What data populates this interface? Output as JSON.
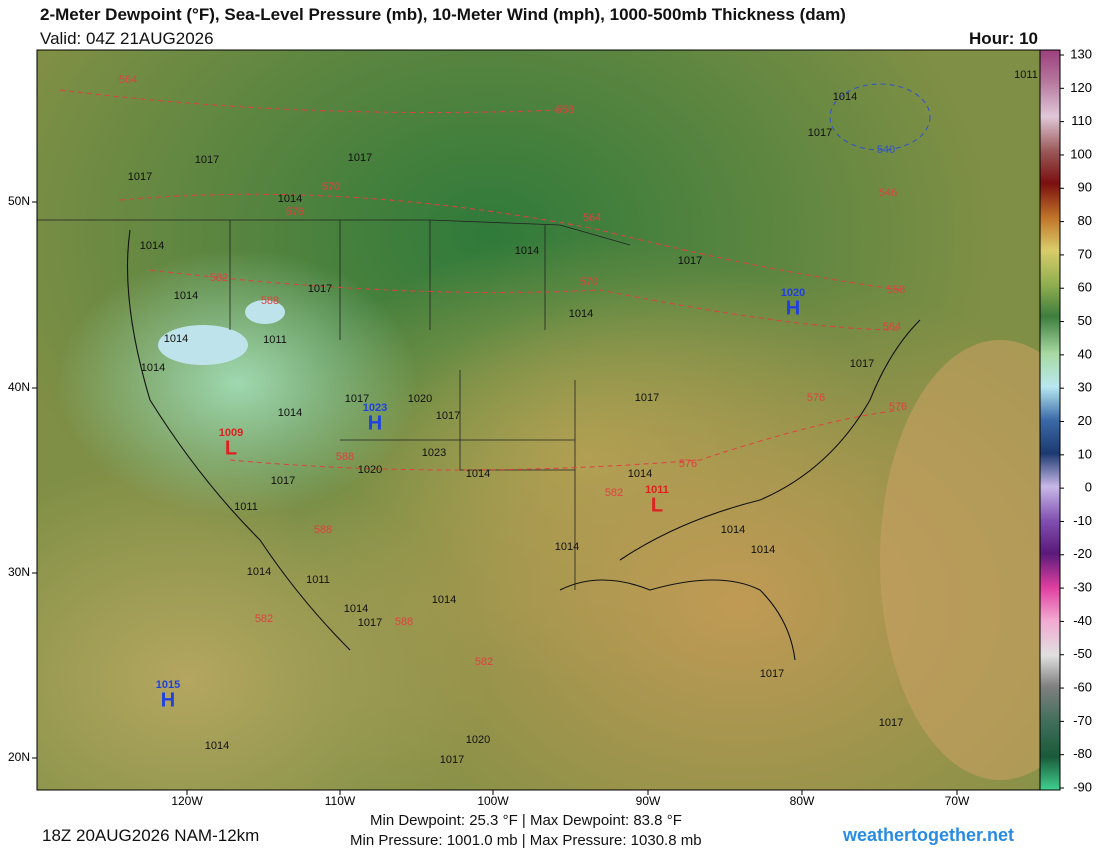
{
  "header": {
    "title": "2-Meter Dewpoint (°F), Sea-Level Pressure (mb), 10-Meter Wind (mph), 1000-500mb Thickness (dam)",
    "valid": "Valid: 04Z 21AUG2026",
    "hour": "Hour: 10"
  },
  "map": {
    "lat_labels": [
      "50N",
      "40N",
      "30N",
      "20N"
    ],
    "lon_labels": [
      "120W",
      "110W",
      "100W",
      "90W",
      "80W",
      "70W"
    ],
    "pressure_labels": [
      "1011",
      "1014",
      "1017",
      "1017",
      "1017",
      "1017",
      "1014",
      "1014",
      "1014",
      "1017",
      "1017",
      "1014",
      "1014",
      "1014",
      "1011",
      "1014",
      "1017",
      "1020",
      "1017",
      "1017",
      "1014",
      "1023",
      "1014",
      "1020",
      "1017",
      "1014",
      "1011",
      "1014",
      "1014",
      "1014",
      "1014",
      "1011",
      "1014",
      "1017",
      "1014",
      "1017",
      "1017",
      "1014",
      "1020",
      "1017",
      "1017"
    ],
    "thickness_labels": [
      "564",
      "558",
      "570",
      "576",
      "546",
      "540",
      "564",
      "582",
      "588",
      "570",
      "558",
      "564",
      "576",
      "576",
      "588",
      "576",
      "582",
      "588",
      "582",
      "588",
      "582"
    ],
    "centers": [
      {
        "symbol": "H",
        "value": "1015"
      },
      {
        "symbol": "H",
        "value": "1020"
      },
      {
        "symbol": "H",
        "value": "1023"
      },
      {
        "symbol": "L",
        "value": "1009"
      },
      {
        "symbol": "L",
        "value": "1011"
      }
    ]
  },
  "colorbar": {
    "ticks": [
      130,
      120,
      110,
      100,
      90,
      80,
      70,
      60,
      50,
      40,
      30,
      20,
      10,
      0,
      -10,
      -20,
      -30,
      -40,
      -50,
      -60,
      -70,
      -80,
      -90
    ]
  },
  "footer": {
    "run": "18Z 20AUG2026 NAM-12km",
    "dewpoint_range": "Min Dewpoint:  25.3 °F | Max Dewpoint:  83.8 °F",
    "pressure_range": "Min Pressure: 1001.0 mb | Max Pressure: 1030.8 mb",
    "site": "weathertogether.net"
  }
}
